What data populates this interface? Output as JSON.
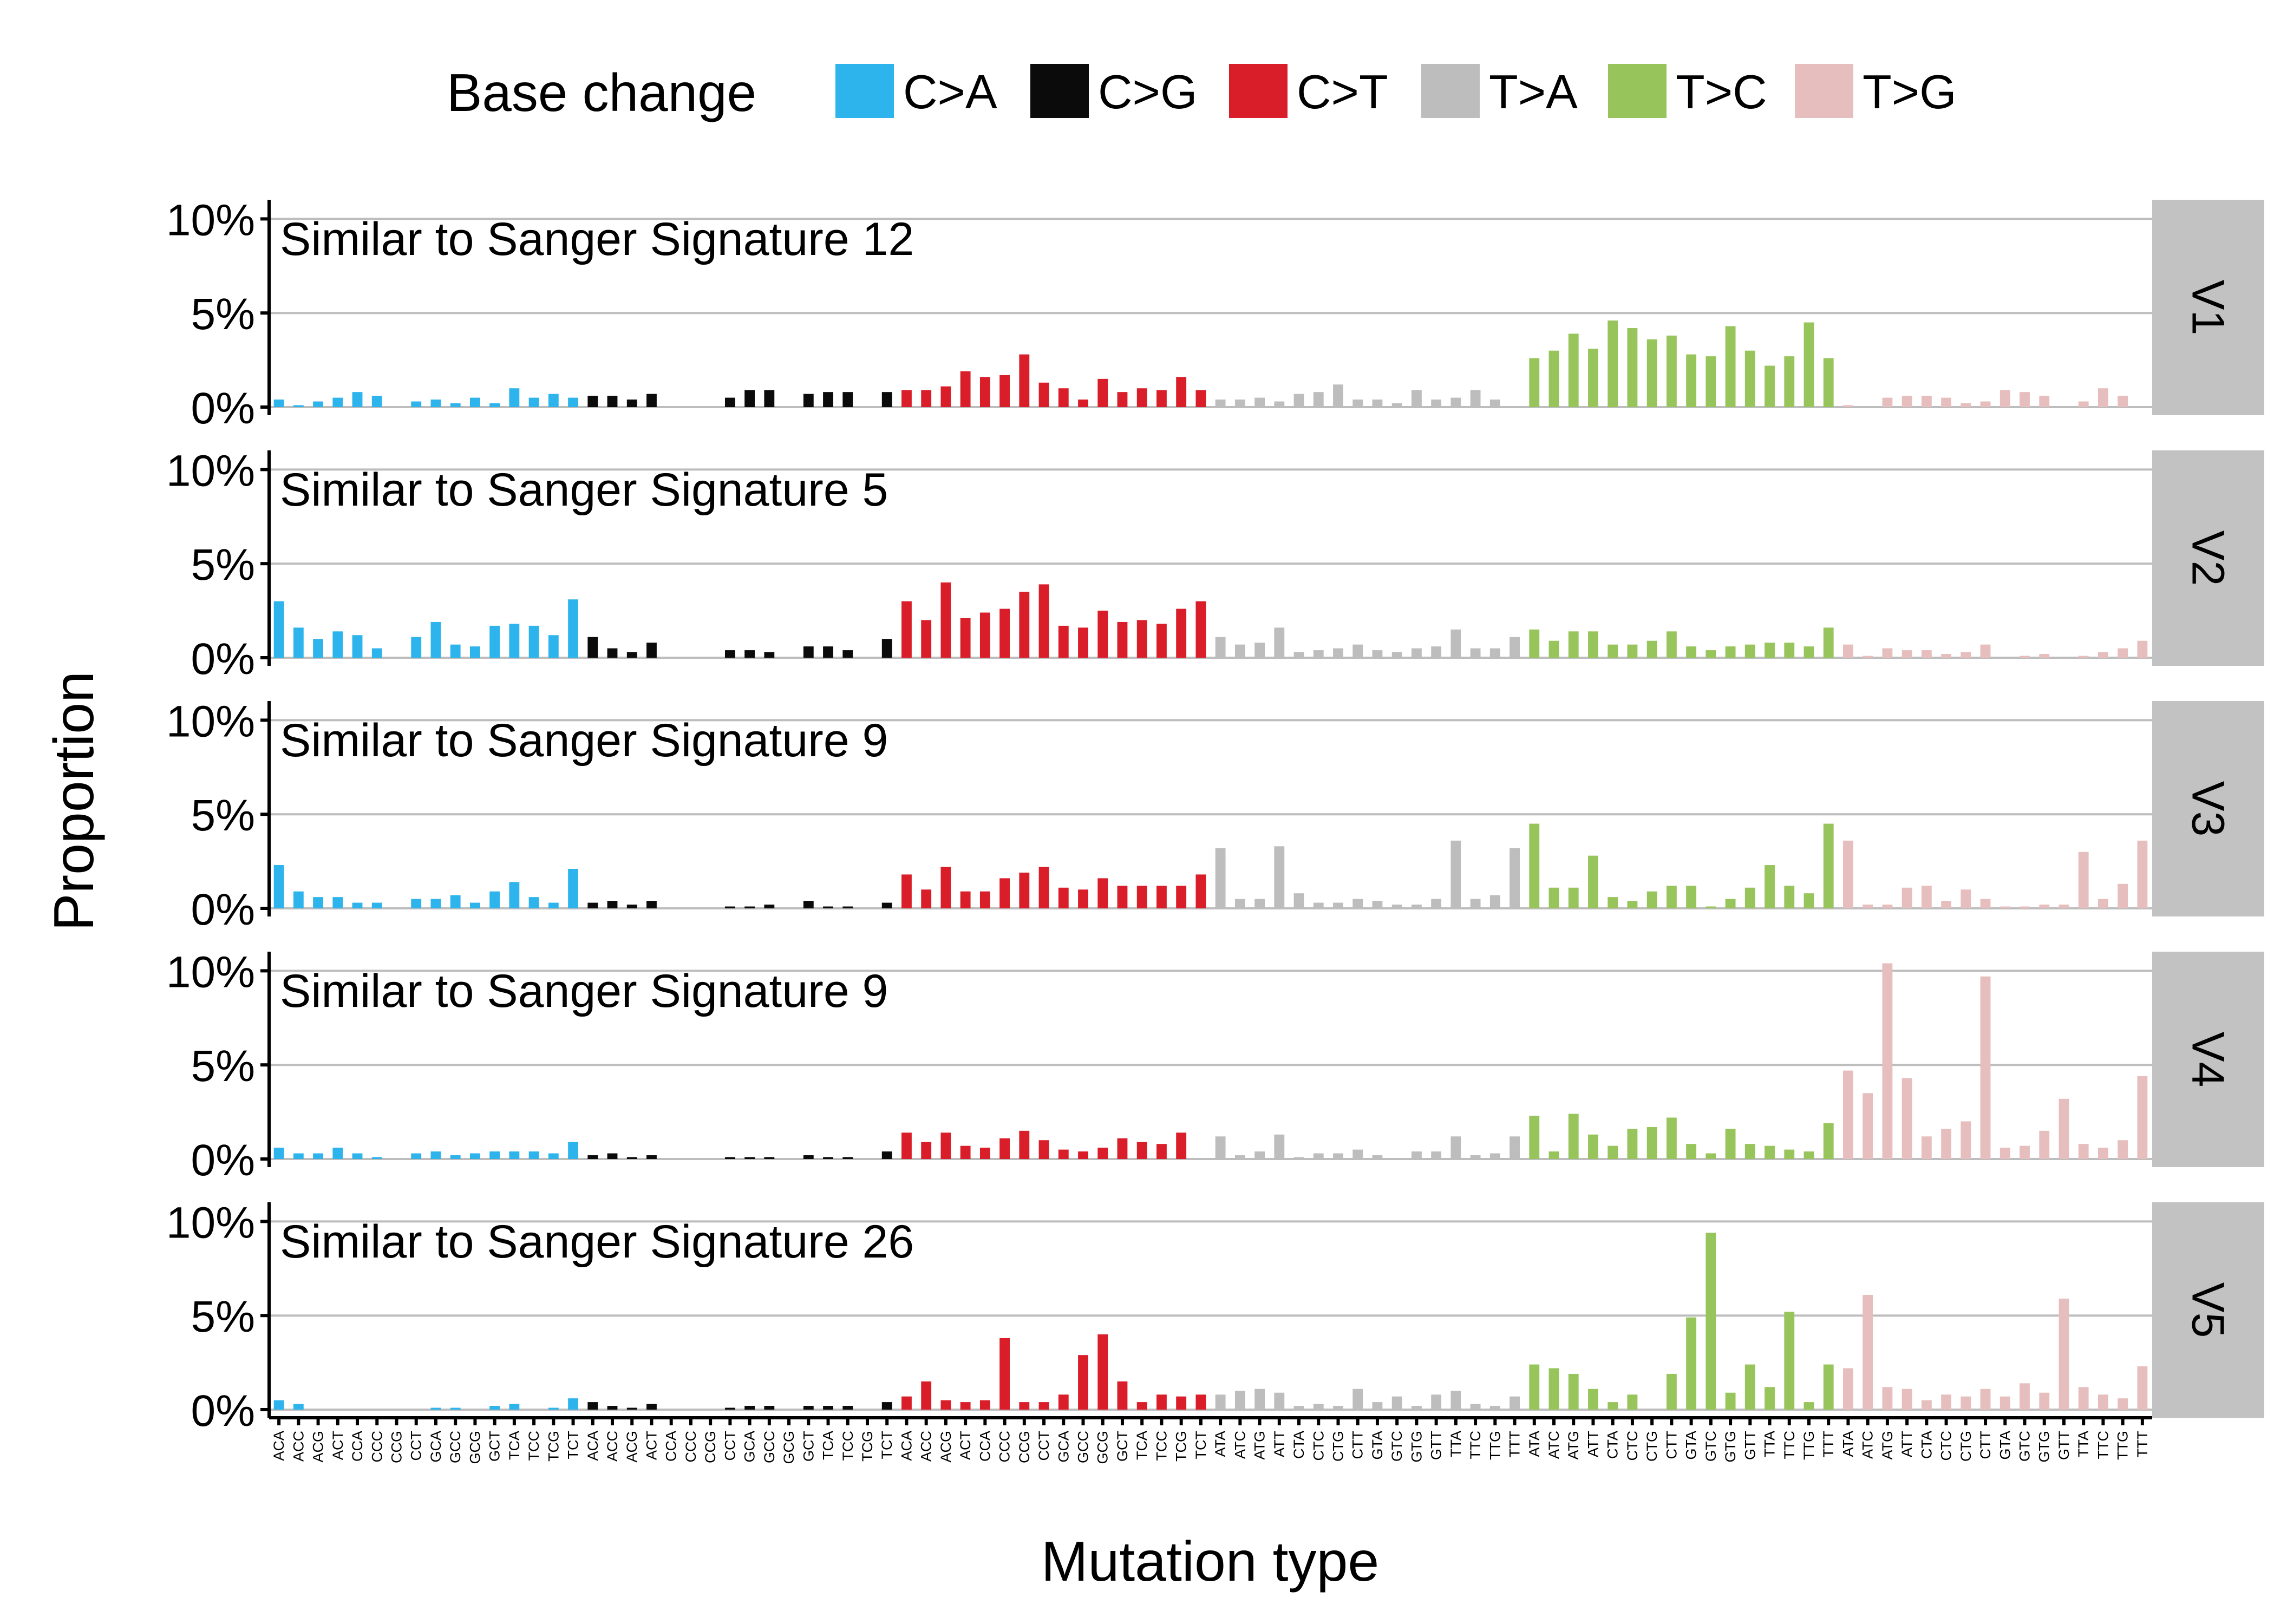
{
  "chart_data": {
    "type": "bar",
    "xlabel": "Mutation type",
    "ylabel": "Proportion",
    "ylim": [
      0,
      0.105
    ],
    "yticks": [
      0,
      0.05,
      0.1
    ],
    "ytick_labels": [
      "0%",
      "5%",
      "10%"
    ],
    "grid": true,
    "legend": {
      "title": "Base change",
      "placement": "top",
      "entries": [
        {
          "label": "C>A",
          "color": "#2EB4EC"
        },
        {
          "label": "C>G",
          "color": "#0B0B0B"
        },
        {
          "label": "C>T",
          "color": "#D91E2A"
        },
        {
          "label": "T>A",
          "color": "#BDBDBD"
        },
        {
          "label": "T>C",
          "color": "#97C55B"
        },
        {
          "label": "T>G",
          "color": "#E6BEBE"
        }
      ]
    },
    "contexts": {
      "C": [
        "ACA",
        "ACC",
        "ACG",
        "ACT",
        "CCA",
        "CCC",
        "CCG",
        "CCT",
        "GCA",
        "GCC",
        "GCG",
        "GCT",
        "TCA",
        "TCC",
        "TCG",
        "TCT"
      ],
      "T": [
        "ATA",
        "ATC",
        "ATG",
        "ATT",
        "CTA",
        "CTC",
        "CTG",
        "CTT",
        "GTA",
        "GTC",
        "GTG",
        "GTT",
        "TTA",
        "TTC",
        "TTG",
        "TTT"
      ]
    },
    "panels": [
      {
        "strip": "V1",
        "title": "Similar to Sanger Signature 12",
        "values": [
          [
            0.004,
            0.001,
            0.003,
            0.005,
            0.008,
            0.006,
            0.0,
            0.003,
            0.004,
            0.002,
            0.005,
            0.002,
            0.01,
            0.005,
            0.007,
            0.005
          ],
          [
            0.006,
            0.006,
            0.004,
            0.007,
            0.0,
            0.0,
            0.0,
            0.005,
            0.009,
            0.009,
            0.0,
            0.007,
            0.008,
            0.008,
            0.0,
            0.008
          ],
          [
            0.009,
            0.009,
            0.011,
            0.019,
            0.016,
            0.017,
            0.028,
            0.013,
            0.01,
            0.004,
            0.015,
            0.008,
            0.01,
            0.009,
            0.016,
            0.009
          ],
          [
            0.004,
            0.004,
            0.005,
            0.003,
            0.007,
            0.008,
            0.012,
            0.004,
            0.004,
            0.002,
            0.009,
            0.004,
            0.005,
            0.009,
            0.004,
            0.0
          ],
          [
            0.026,
            0.03,
            0.039,
            0.031,
            0.046,
            0.042,
            0.036,
            0.038,
            0.028,
            0.027,
            0.043,
            0.03,
            0.022,
            0.027,
            0.045,
            0.026
          ],
          [
            0.001,
            0.0,
            0.005,
            0.006,
            0.006,
            0.005,
            0.002,
            0.003,
            0.009,
            0.008,
            0.006,
            0.0,
            0.003,
            0.01,
            0.006,
            0.0
          ]
        ]
      },
      {
        "strip": "V2",
        "title": "Similar to Sanger Signature 5",
        "values": [
          [
            0.03,
            0.016,
            0.01,
            0.014,
            0.012,
            0.005,
            0.0,
            0.011,
            0.019,
            0.007,
            0.006,
            0.017,
            0.018,
            0.017,
            0.012,
            0.031
          ],
          [
            0.011,
            0.005,
            0.003,
            0.008,
            0.0,
            0.0,
            0.0,
            0.004,
            0.004,
            0.003,
            0.0,
            0.006,
            0.006,
            0.004,
            0.0,
            0.01
          ],
          [
            0.03,
            0.02,
            0.04,
            0.021,
            0.024,
            0.026,
            0.035,
            0.039,
            0.017,
            0.016,
            0.025,
            0.019,
            0.02,
            0.018,
            0.026,
            0.03
          ],
          [
            0.011,
            0.007,
            0.008,
            0.016,
            0.003,
            0.004,
            0.005,
            0.007,
            0.004,
            0.003,
            0.005,
            0.006,
            0.015,
            0.005,
            0.005,
            0.011
          ],
          [
            0.015,
            0.009,
            0.014,
            0.014,
            0.007,
            0.007,
            0.009,
            0.014,
            0.006,
            0.004,
            0.006,
            0.007,
            0.008,
            0.008,
            0.006,
            0.016
          ],
          [
            0.007,
            0.001,
            0.005,
            0.004,
            0.004,
            0.002,
            0.003,
            0.007,
            0.0,
            0.001,
            0.002,
            0.0,
            0.001,
            0.003,
            0.005,
            0.009
          ]
        ]
      },
      {
        "strip": "V3",
        "title": "Similar to Sanger Signature 9",
        "values": [
          [
            0.023,
            0.009,
            0.006,
            0.006,
            0.003,
            0.003,
            0.0,
            0.005,
            0.005,
            0.007,
            0.003,
            0.009,
            0.014,
            0.006,
            0.003,
            0.021
          ],
          [
            0.003,
            0.004,
            0.002,
            0.004,
            0.0,
            0.0,
            0.0,
            0.001,
            0.001,
            0.002,
            0.0,
            0.004,
            0.001,
            0.001,
            0.0,
            0.003
          ],
          [
            0.018,
            0.01,
            0.022,
            0.009,
            0.009,
            0.016,
            0.019,
            0.022,
            0.011,
            0.01,
            0.016,
            0.012,
            0.012,
            0.012,
            0.012,
            0.018
          ],
          [
            0.032,
            0.005,
            0.005,
            0.033,
            0.008,
            0.003,
            0.003,
            0.005,
            0.004,
            0.002,
            0.002,
            0.005,
            0.036,
            0.005,
            0.007,
            0.032
          ],
          [
            0.045,
            0.011,
            0.011,
            0.028,
            0.006,
            0.004,
            0.009,
            0.012,
            0.012,
            0.001,
            0.005,
            0.011,
            0.023,
            0.012,
            0.008,
            0.045
          ],
          [
            0.036,
            0.002,
            0.002,
            0.011,
            0.012,
            0.004,
            0.01,
            0.005,
            0.001,
            0.001,
            0.002,
            0.002,
            0.03,
            0.005,
            0.013,
            0.036
          ]
        ]
      },
      {
        "strip": "V4",
        "title": "Similar to Sanger Signature 9",
        "values": [
          [
            0.006,
            0.003,
            0.003,
            0.006,
            0.003,
            0.001,
            0.0,
            0.003,
            0.004,
            0.002,
            0.003,
            0.004,
            0.004,
            0.004,
            0.003,
            0.009
          ],
          [
            0.002,
            0.003,
            0.001,
            0.002,
            0.0,
            0.0,
            0.0,
            0.001,
            0.001,
            0.001,
            0.0,
            0.002,
            0.001,
            0.001,
            0.0,
            0.004
          ],
          [
            0.014,
            0.009,
            0.014,
            0.007,
            0.006,
            0.011,
            0.015,
            0.01,
            0.005,
            0.004,
            0.006,
            0.011,
            0.009,
            0.008,
            0.014,
            0.0
          ],
          [
            0.012,
            0.002,
            0.004,
            0.013,
            0.001,
            0.003,
            0.003,
            0.005,
            0.002,
            0.0,
            0.004,
            0.004,
            0.012,
            0.002,
            0.003,
            0.012
          ],
          [
            0.023,
            0.004,
            0.024,
            0.013,
            0.007,
            0.016,
            0.017,
            0.022,
            0.008,
            0.003,
            0.016,
            0.008,
            0.007,
            0.005,
            0.004,
            0.019
          ],
          [
            0.047,
            0.035,
            0.104,
            0.043,
            0.012,
            0.016,
            0.02,
            0.097,
            0.006,
            0.007,
            0.015,
            0.032,
            0.008,
            0.006,
            0.01,
            0.044
          ]
        ]
      },
      {
        "strip": "V5",
        "title": "Similar to Sanger Signature 26",
        "values": [
          [
            0.005,
            0.003,
            0.0,
            0.0,
            0.0,
            0.0,
            0.0,
            0.0,
            0.001,
            0.001,
            0.0,
            0.002,
            0.003,
            0.0,
            0.001,
            0.006
          ],
          [
            0.004,
            0.002,
            0.001,
            0.003,
            0.0,
            0.0,
            0.0,
            0.001,
            0.002,
            0.002,
            0.0,
            0.002,
            0.002,
            0.002,
            0.0,
            0.004
          ],
          [
            0.007,
            0.015,
            0.005,
            0.004,
            0.005,
            0.038,
            0.004,
            0.004,
            0.008,
            0.029,
            0.04,
            0.015,
            0.004,
            0.008,
            0.007,
            0.008
          ],
          [
            0.008,
            0.01,
            0.011,
            0.009,
            0.002,
            0.003,
            0.002,
            0.011,
            0.004,
            0.007,
            0.002,
            0.008,
            0.01,
            0.003,
            0.002,
            0.007
          ],
          [
            0.024,
            0.022,
            0.019,
            0.011,
            0.004,
            0.008,
            0.0,
            0.019,
            0.049,
            0.094,
            0.009,
            0.024,
            0.012,
            0.052,
            0.004,
            0.024
          ],
          [
            0.022,
            0.061,
            0.012,
            0.011,
            0.005,
            0.008,
            0.007,
            0.011,
            0.007,
            0.014,
            0.009,
            0.059,
            0.012,
            0.008,
            0.006,
            0.023
          ]
        ]
      }
    ]
  }
}
